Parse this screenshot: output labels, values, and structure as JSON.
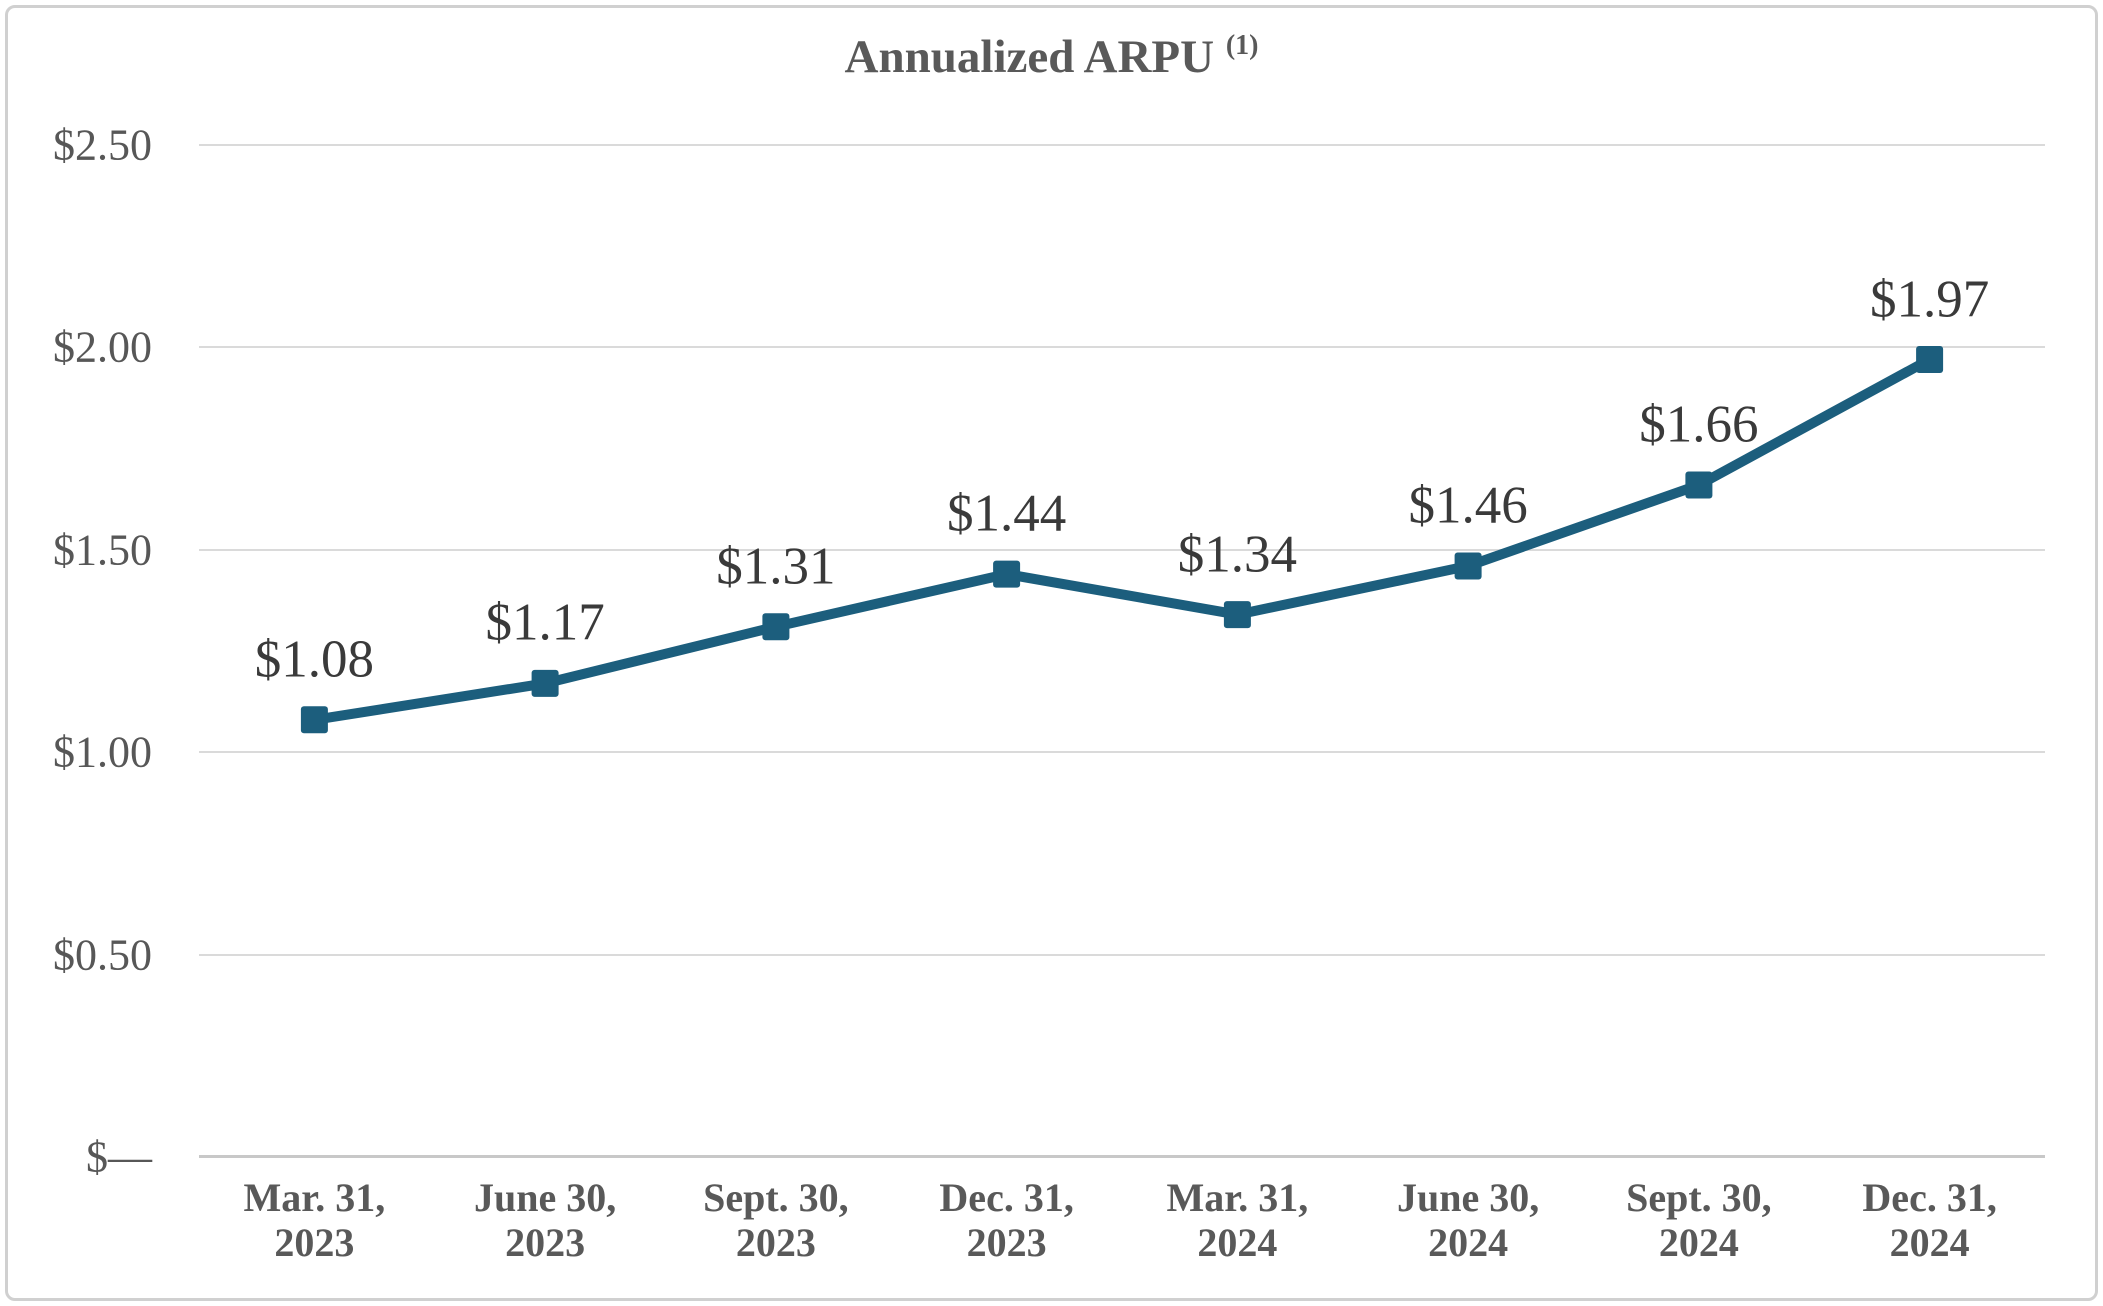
{
  "title": {
    "text": "Annualized ARPU",
    "superscript": "(1)"
  },
  "chart_data": {
    "type": "line",
    "title": "Annualized ARPU (1)",
    "categories": [
      "Mar. 31,\n2023",
      "June 30,\n2023",
      "Sept. 30,\n2023",
      "Dec. 31,\n2023",
      "Mar. 31,\n2024",
      "June 30,\n2024",
      "Sept. 30,\n2024",
      "Dec. 31,\n2024"
    ],
    "series": [
      {
        "name": "Annualized ARPU",
        "values": [
          1.08,
          1.17,
          1.31,
          1.44,
          1.34,
          1.46,
          1.66,
          1.97
        ],
        "data_labels": [
          "$1.08",
          "$1.17",
          "$1.31",
          "$1.44",
          "$1.34",
          "$1.46",
          "$1.66",
          "$1.97"
        ]
      }
    ],
    "y_ticks": [
      {
        "label": "$2.50",
        "value": 2.5
      },
      {
        "label": "$2.00",
        "value": 2.0
      },
      {
        "label": "$1.50",
        "value": 1.5
      },
      {
        "label": "$1.00",
        "value": 1.0
      },
      {
        "label": "$0.50",
        "value": 0.5
      },
      {
        "label": "$—",
        "value": 0.0
      }
    ],
    "ylim": [
      0,
      2.5
    ],
    "xlabel": "",
    "ylabel": "",
    "grid": true,
    "legend": "none",
    "marker": "square"
  },
  "colors": {
    "line": "#1c5e7d",
    "marker": "#1c5e7d",
    "gridline": "#dadada",
    "axis_line": "#c8c8c8",
    "border": "#d0d0d0",
    "title_text": "#595959",
    "axis_text": "#575757",
    "data_label_text": "#3a3a3a"
  }
}
